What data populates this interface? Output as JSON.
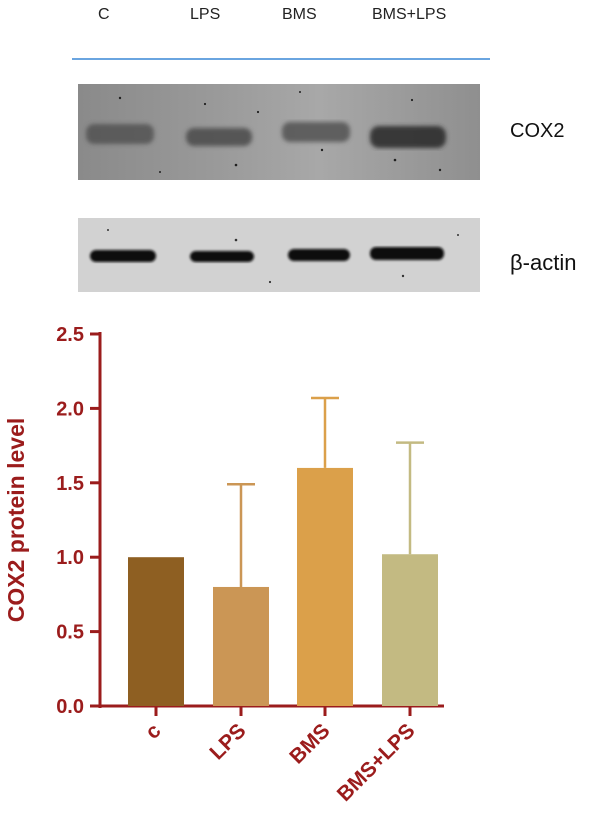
{
  "blot": {
    "lane_labels": [
      "C",
      "LPS",
      "BMS",
      "BMS+LPS"
    ],
    "panels": [
      {
        "label": "COX2"
      },
      {
        "label": "β-actin"
      }
    ]
  },
  "chart_data": {
    "type": "bar",
    "ylabel": "COX2 protein level",
    "xlabel": "",
    "categories": [
      "c",
      "LPS",
      "BMS",
      "BMS+LPS"
    ],
    "values": [
      1.0,
      0.8,
      1.6,
      1.02
    ],
    "error_upper": [
      0.0,
      0.69,
      0.47,
      0.75
    ],
    "ylim": [
      0,
      2.5
    ],
    "yticks": [
      "0.0",
      "0.5",
      "1.0",
      "1.5",
      "2.0",
      "2.5"
    ],
    "ytick_values": [
      0,
      0.5,
      1.0,
      1.5,
      2.0,
      2.5
    ],
    "bar_colors": [
      "#8e5f22",
      "#cb9655",
      "#dba04a",
      "#c3ba82"
    ],
    "axis_color": "#9b1c1c",
    "grid": false,
    "legend": "none"
  }
}
